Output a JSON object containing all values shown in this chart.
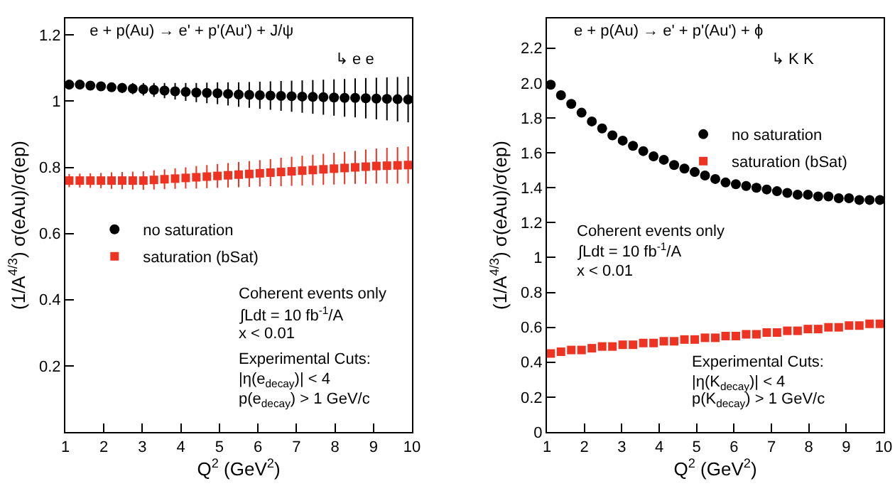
{
  "chart_data": [
    {
      "type": "scatter",
      "title": "e + p(Au) → e' + p'(Au') + J/ψ",
      "xlabel": "Q$^{2}$ (GeV$^{2}$)",
      "ylabel": "(1/A$^{4/3}$) σ(eAu)/σ(ep)",
      "annotations": [
        "↳ e e",
        "Coherent events only",
        "∫Ldt = 10 fb$^{-1}$/A",
        "x < 0.01",
        "Experimental Cuts:",
        "|η(e$_{decay}$)| < 4",
        "p(e$_{decay}$) > 1 GeV/c"
      ],
      "x": [
        1.1,
        1.375,
        1.65,
        1.925,
        2.2,
        2.475,
        2.75,
        3.025,
        3.3,
        3.575,
        3.85,
        4.125,
        4.4,
        4.675,
        4.95,
        5.225,
        5.5,
        5.775,
        6.05,
        6.325,
        6.6,
        6.875,
        7.15,
        7.425,
        7.7,
        7.975,
        8.25,
        8.525,
        8.8,
        9.075,
        9.35,
        9.625,
        9.9
      ],
      "series": [
        {
          "name": "no saturation",
          "color": "#000000",
          "marker": "circle",
          "values": [
            1.05,
            1.05,
            1.047,
            1.045,
            1.042,
            1.04,
            1.038,
            1.036,
            1.034,
            1.032,
            1.03,
            1.028,
            1.026,
            1.025,
            1.024,
            1.022,
            1.02,
            1.019,
            1.018,
            1.017,
            1.016,
            1.015,
            1.014,
            1.013,
            1.012,
            1.011,
            1.01,
            1.01,
            1.009,
            1.008,
            1.007,
            1.006,
            1.005
          ],
          "errors": [
            0.005,
            0.007,
            0.009,
            0.011,
            0.013,
            0.015,
            0.017,
            0.019,
            0.021,
            0.023,
            0.025,
            0.027,
            0.029,
            0.031,
            0.033,
            0.035,
            0.037,
            0.039,
            0.041,
            0.043,
            0.045,
            0.047,
            0.049,
            0.051,
            0.053,
            0.055,
            0.057,
            0.059,
            0.061,
            0.063,
            0.065,
            0.067,
            0.069
          ]
        },
        {
          "name": "saturation (bSat)",
          "color": "#ee3322",
          "marker": "square",
          "values": [
            0.76,
            0.76,
            0.76,
            0.76,
            0.76,
            0.76,
            0.76,
            0.76,
            0.762,
            0.764,
            0.766,
            0.768,
            0.77,
            0.772,
            0.774,
            0.776,
            0.778,
            0.78,
            0.782,
            0.784,
            0.786,
            0.788,
            0.79,
            0.792,
            0.794,
            0.796,
            0.798,
            0.8,
            0.802,
            0.804,
            0.805,
            0.806,
            0.807
          ],
          "errors": [
            0.02,
            0.021,
            0.022,
            0.023,
            0.025,
            0.026,
            0.027,
            0.028,
            0.029,
            0.03,
            0.031,
            0.032,
            0.034,
            0.035,
            0.036,
            0.037,
            0.038,
            0.039,
            0.04,
            0.041,
            0.043,
            0.044,
            0.045,
            0.046,
            0.047,
            0.048,
            0.049,
            0.05,
            0.052,
            0.053,
            0.054,
            0.055,
            0.056
          ]
        }
      ],
      "xlim": [
        1,
        10
      ],
      "xticks": [
        1,
        2,
        3,
        4,
        5,
        6,
        7,
        8,
        9,
        10
      ],
      "ylim": [
        0,
        1.25
      ],
      "yticks": [
        0.2,
        0.4,
        0.6,
        0.8,
        1,
        1.2
      ],
      "grid": false,
      "legend": "left"
    },
    {
      "type": "scatter",
      "title": "e + p(Au) → e' + p'(Au') + ϕ",
      "xlabel": "Q$^{2}$ (GeV$^{2}$)",
      "ylabel": "(1/A$^{4/3}$) σ(eAu)/σ(ep)",
      "annotations": [
        "↳ K K",
        "Coherent events only",
        "∫Ldt = 10 fb$^{-1}$/A",
        "x < 0.01",
        "Experimental Cuts:",
        "|η(K$_{decay}$)| < 4",
        "p(K$_{decay}$) > 1 GeV/c"
      ],
      "x": [
        1.1,
        1.375,
        1.65,
        1.925,
        2.2,
        2.475,
        2.75,
        3.025,
        3.3,
        3.575,
        3.85,
        4.125,
        4.4,
        4.675,
        4.95,
        5.225,
        5.5,
        5.775,
        6.05,
        6.325,
        6.6,
        6.875,
        7.15,
        7.425,
        7.7,
        7.975,
        8.25,
        8.525,
        8.8,
        9.075,
        9.35,
        9.625,
        9.9
      ],
      "series": [
        {
          "name": "no saturation",
          "color": "#000000",
          "marker": "circle",
          "values": [
            1.99,
            1.93,
            1.88,
            1.83,
            1.78,
            1.74,
            1.7,
            1.67,
            1.64,
            1.61,
            1.58,
            1.56,
            1.53,
            1.51,
            1.49,
            1.47,
            1.45,
            1.43,
            1.42,
            1.41,
            1.4,
            1.39,
            1.38,
            1.37,
            1.36,
            1.36,
            1.35,
            1.35,
            1.34,
            1.34,
            1.33,
            1.33,
            1.33
          ]
        },
        {
          "name": "saturation (bSat)",
          "color": "#ee3322",
          "marker": "square",
          "values": [
            0.45,
            0.46,
            0.47,
            0.47,
            0.48,
            0.49,
            0.49,
            0.5,
            0.5,
            0.51,
            0.51,
            0.52,
            0.52,
            0.53,
            0.53,
            0.54,
            0.54,
            0.55,
            0.55,
            0.56,
            0.56,
            0.57,
            0.57,
            0.58,
            0.58,
            0.59,
            0.59,
            0.6,
            0.6,
            0.61,
            0.61,
            0.62,
            0.62
          ]
        }
      ],
      "xlim": [
        1,
        10
      ],
      "xticks": [
        1,
        2,
        3,
        4,
        5,
        6,
        7,
        8,
        9,
        10
      ],
      "ylim": [
        0,
        2.37
      ],
      "yticks": [
        0,
        0.2,
        0.4,
        0.6,
        0.8,
        1,
        1.2,
        1.4,
        1.6,
        1.8,
        {
          "value": 2,
          "label": "2.0"
        },
        2.2
      ],
      "grid": false,
      "legend": "top right"
    }
  ]
}
